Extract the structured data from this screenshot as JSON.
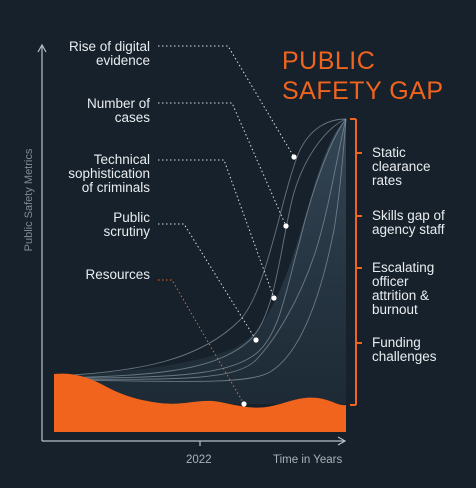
{
  "title_line1": "PUBLIC",
  "title_line2": "SAFETY GAP",
  "y_axis_label": "Public Safety Metrics",
  "x_axis_label": "Time in Years",
  "x_tick": "2022",
  "left_labels": [
    {
      "lines": [
        "Rise of digital",
        "evidence"
      ]
    },
    {
      "lines": [
        "Number of",
        "cases"
      ]
    },
    {
      "lines": [
        "Technical",
        "sophistication",
        "of criminals"
      ]
    },
    {
      "lines": [
        "Public",
        "scrutiny"
      ]
    },
    {
      "lines": [
        "Resources"
      ]
    }
  ],
  "right_labels": [
    {
      "lines": [
        "Static",
        "clearance",
        "rates"
      ]
    },
    {
      "lines": [
        "Skills gap of",
        "agency staff"
      ]
    },
    {
      "lines": [
        "Escalating",
        "officer",
        "attrition &",
        "burnout"
      ]
    },
    {
      "lines": [
        "Funding",
        "challenges"
      ]
    }
  ],
  "colors": {
    "background": "#16212b",
    "accent": "#f0641e",
    "text": "#e9edf0",
    "axis": "#b8c0c6"
  }
}
